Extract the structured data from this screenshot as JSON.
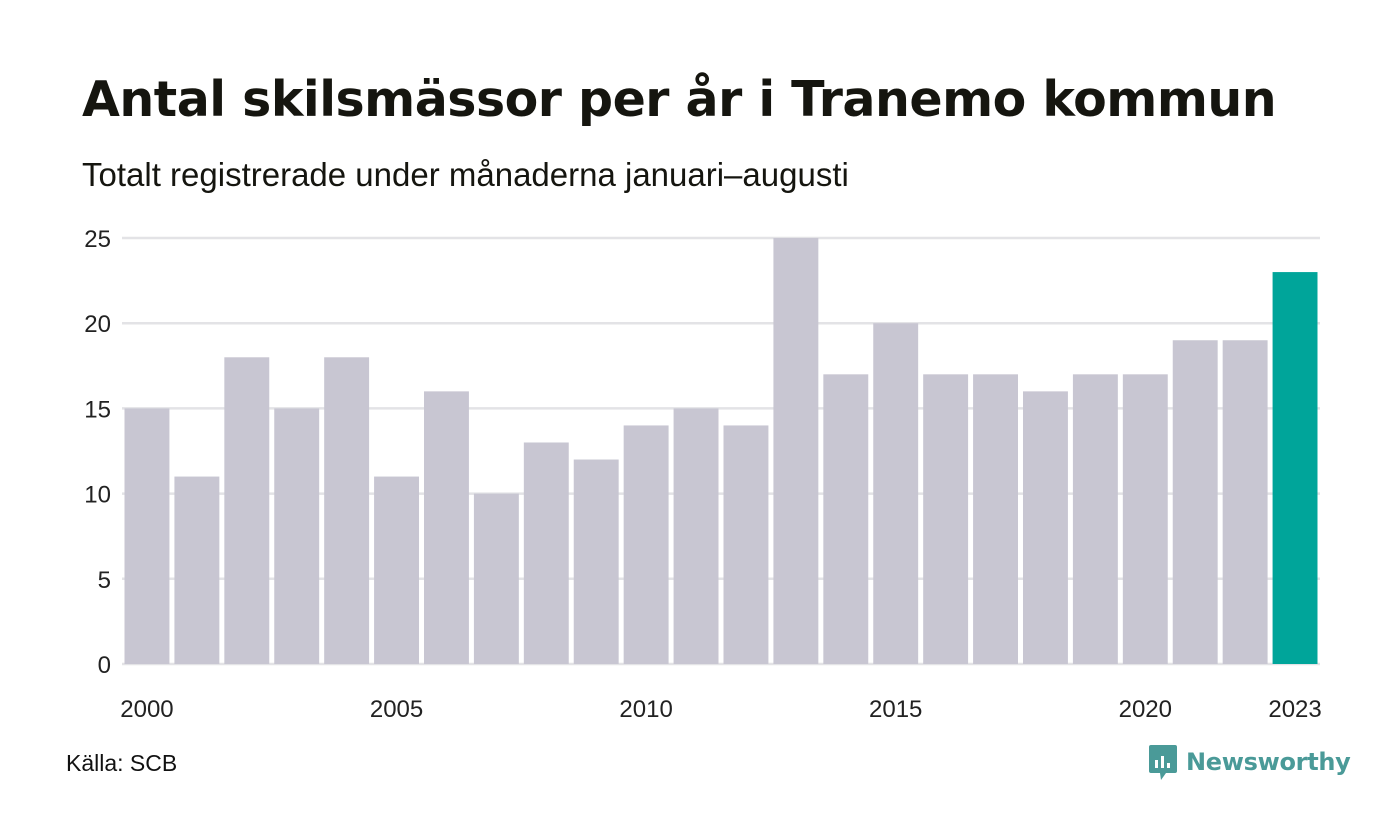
{
  "title": "Antal skilsmässor per år i Tranemo kommun",
  "subtitle": "Totalt registrerade under månaderna januari–augusti",
  "source": "Källa: SCB",
  "brand": {
    "name": "Newsworthy",
    "icon": "newsworthy-logo-icon",
    "color": "#4a9a98"
  },
  "colors": {
    "bar": "#c8c6d2",
    "highlight": "#00a59a",
    "grid": "#e3e3e6"
  },
  "chart_data": {
    "type": "bar",
    "x": [
      2000,
      2001,
      2002,
      2003,
      2004,
      2005,
      2006,
      2007,
      2008,
      2009,
      2010,
      2011,
      2012,
      2013,
      2014,
      2015,
      2016,
      2017,
      2018,
      2019,
      2020,
      2021,
      2022,
      2023
    ],
    "values": [
      15,
      11,
      18,
      15,
      18,
      11,
      16,
      10,
      13,
      12,
      14,
      15,
      14,
      25,
      17,
      20,
      17,
      17,
      16,
      17,
      17,
      19,
      19,
      23
    ],
    "highlight": 2023,
    "x_tick_labels": [
      "2000",
      "2005",
      "2010",
      "2015",
      "2020",
      "2023"
    ],
    "y_ticks": [
      0,
      5,
      10,
      15,
      20,
      25
    ],
    "ylim": [
      0,
      25
    ],
    "xlabel": "",
    "ylabel": "",
    "grid": true
  }
}
